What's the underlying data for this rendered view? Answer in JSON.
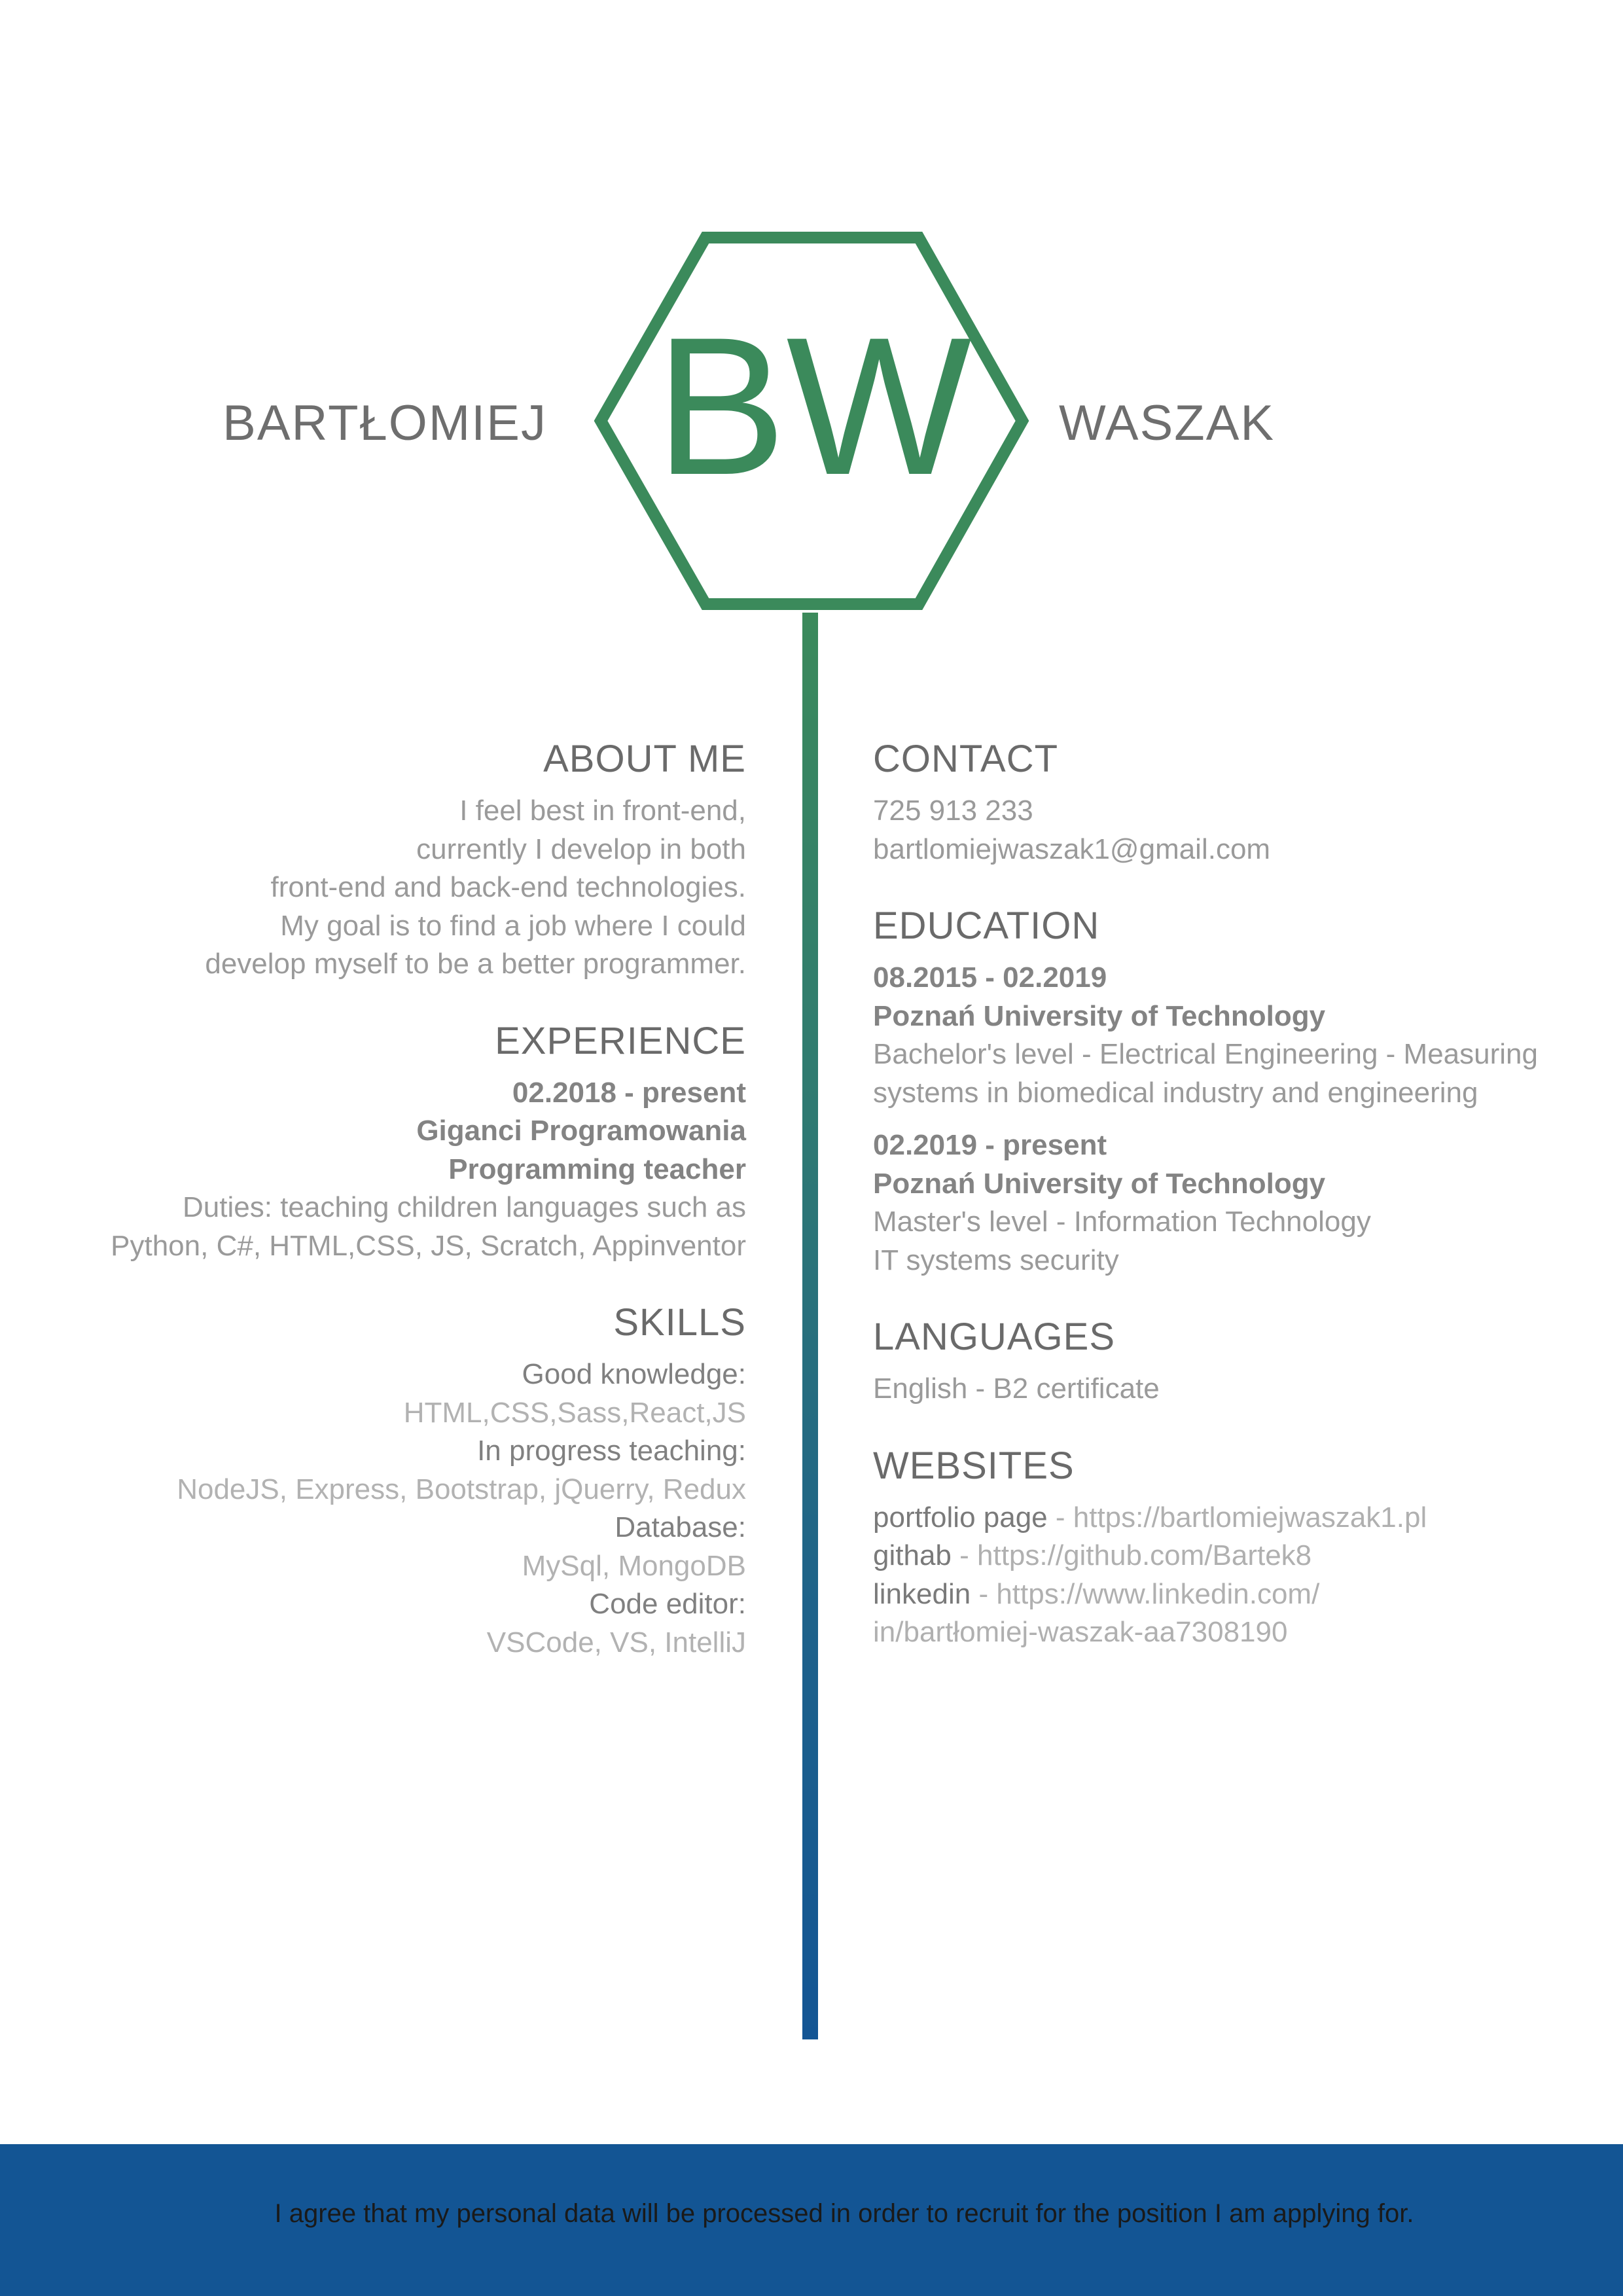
{
  "header": {
    "first_name": "BARTŁOMIEJ",
    "last_name": "WASZAK",
    "monogram": "BW",
    "accent_color": "#3b8a5b",
    "secondary_color": "#135594"
  },
  "about": {
    "heading": "ABOUT ME",
    "lines": [
      "I feel best in front-end,",
      "currently I develop in both",
      "front-end and back-end technologies.",
      "My goal is to find a job where I could",
      "develop myself to be a better programmer."
    ]
  },
  "experience": {
    "heading": "EXPERIENCE",
    "period": "02.2018 - present",
    "company": "Giganci Programowania",
    "role": "Programming teacher",
    "duties": [
      "Duties: teaching children languages such as",
      "Python, C#, HTML,CSS, JS, Scratch, Appinventor"
    ]
  },
  "skills": {
    "heading": "SKILLS",
    "groups": [
      {
        "label": "Good knowledge:",
        "value": "HTML,CSS,Sass,React,JS"
      },
      {
        "label": "In progress teaching:",
        "value": "NodeJS, Express, Bootstrap, jQuerry, Redux"
      },
      {
        "label": "Database:",
        "value": "MySql, MongoDB"
      },
      {
        "label": "Code editor:",
        "value": "VSCode, VS, IntelliJ"
      }
    ]
  },
  "contact": {
    "heading": "CONTACT",
    "phone": "725 913 233",
    "email": "bartlomiejwaszak1@gmail.com"
  },
  "education": {
    "heading": "EDUCATION",
    "entries": [
      {
        "period": "08.2015 - 02.2019",
        "school": "Poznań University of Technology",
        "details": [
          "Bachelor's level - Electrical Engineering - Measuring",
          "systems in biomedical industry and engineering"
        ]
      },
      {
        "period": "02.2019 - present",
        "school": "Poznań University of Technology",
        "details": [
          "Master's level - Information Technology",
          "IT systems security"
        ]
      }
    ]
  },
  "languages": {
    "heading": "LANGUAGES",
    "items": [
      "English - B2 certificate"
    ]
  },
  "websites": {
    "heading": "WEBSITES",
    "items": [
      {
        "label": "portfolio page",
        "sep": " - ",
        "url": "https://bartlomiejwaszak1.pl"
      },
      {
        "label": "githab",
        "sep": " - ",
        "url": "https://github.com/Bartek8"
      },
      {
        "label": "linkedin",
        "sep": " - ",
        "url": "https://www.linkedin.com/",
        "url_cont": "in/bartłomiej-waszak-aa7308190"
      }
    ]
  },
  "footer": {
    "consent": "I agree that my personal data will be processed in order to recruit for the position I am applying for."
  }
}
